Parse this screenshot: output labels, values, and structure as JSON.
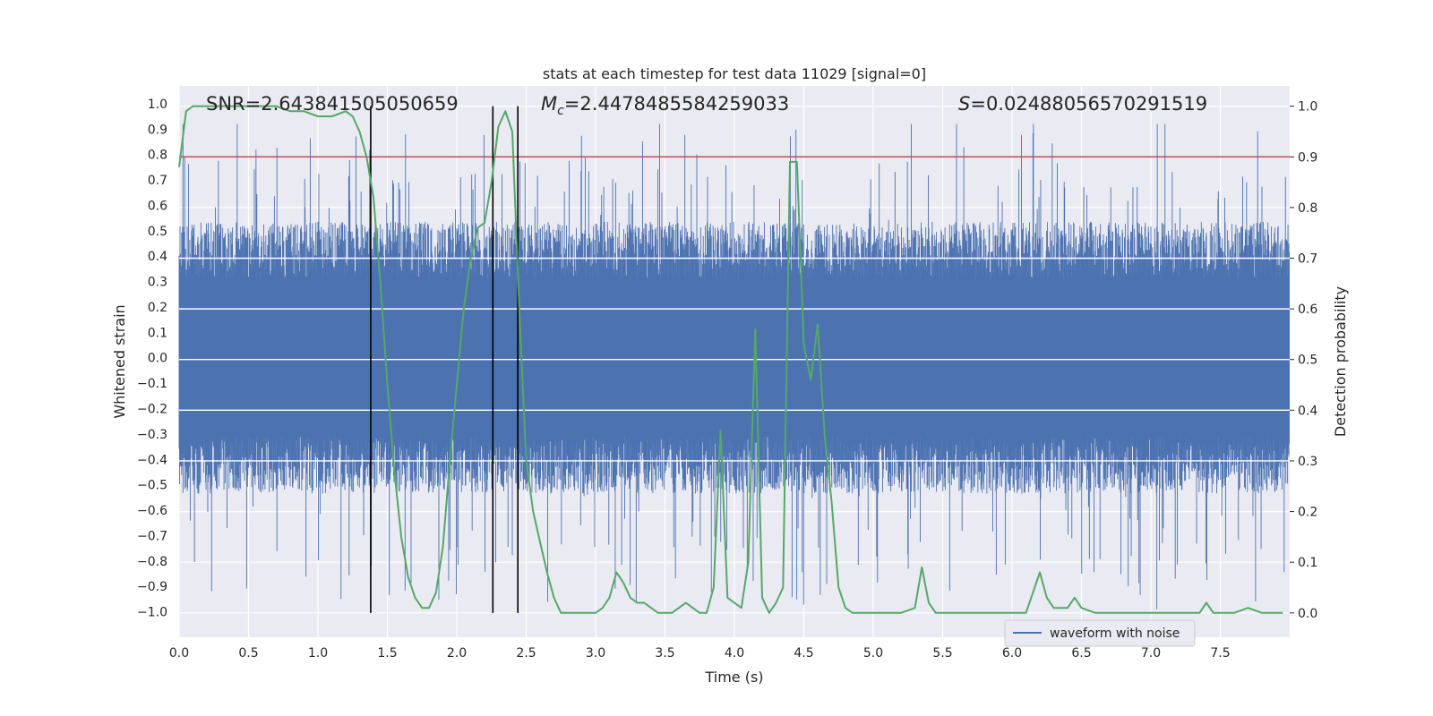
{
  "chart_data": {
    "type": "line",
    "title": "stats at each timestep for test data 11029 [signal=0]",
    "xlabel": "Time (s)",
    "ylabel": "Whitened strain",
    "y2label": "Detection probability",
    "xlim": [
      0.0,
      8.0
    ],
    "ylim": [
      -1.1,
      1.07
    ],
    "y2lim": [
      -0.048,
      1.04
    ],
    "xticks": [
      "0.0",
      "0.5",
      "1.0",
      "1.5",
      "2.0",
      "2.5",
      "3.0",
      "3.5",
      "4.0",
      "4.5",
      "5.0",
      "5.5",
      "6.0",
      "6.5",
      "7.0",
      "7.5"
    ],
    "yticks": [
      "−1.0",
      "−0.9",
      "−0.8",
      "−0.7",
      "−0.6",
      "−0.5",
      "−0.4",
      "−0.3",
      "−0.2",
      "−0.1",
      "0.0",
      "0.1",
      "0.2",
      "0.3",
      "0.4",
      "0.5",
      "0.6",
      "0.7",
      "0.8",
      "0.9",
      "1.0"
    ],
    "y2ticks": [
      "0.0",
      "0.1",
      "0.2",
      "0.3",
      "0.4",
      "0.5",
      "0.6",
      "0.7",
      "0.8",
      "0.9",
      "1.0"
    ],
    "grid": true,
    "legend": {
      "position": "lower-right",
      "entries": [
        "waveform with noise"
      ]
    },
    "annotations": {
      "snr_prefix": "SNR=",
      "snr_value": "2.643841505050659",
      "mc_symbol": "M",
      "mc_subscript": "c",
      "mc_value": "=2.4478485584259033",
      "s_symbol": "S",
      "s_value": "=0.02488056570291519"
    },
    "threshold": {
      "y2": 0.9,
      "color": "#c44e52"
    },
    "vlines_x": [
      1.38,
      2.26,
      2.44
    ],
    "series": [
      {
        "name": "waveform with noise",
        "axis": "y",
        "color": "#4c72b0",
        "kind": "noise",
        "envelope_typical": 0.5,
        "envelope_max": 1.0,
        "envelope_min": -1.0
      },
      {
        "name": "detection probability",
        "axis": "y2",
        "color": "#55a868",
        "x": [
          0.0,
          0.05,
          0.1,
          0.15,
          0.2,
          0.3,
          0.4,
          0.5,
          0.6,
          0.7,
          0.8,
          0.9,
          1.0,
          1.1,
          1.2,
          1.25,
          1.3,
          1.35,
          1.4,
          1.45,
          1.5,
          1.55,
          1.6,
          1.65,
          1.7,
          1.75,
          1.8,
          1.85,
          1.9,
          1.95,
          2.0,
          2.05,
          2.1,
          2.15,
          2.2,
          2.25,
          2.3,
          2.35,
          2.4,
          2.45,
          2.5,
          2.55,
          2.6,
          2.65,
          2.7,
          2.75,
          2.8,
          2.85,
          2.9,
          2.95,
          3.0,
          3.05,
          3.1,
          3.15,
          3.2,
          3.25,
          3.3,
          3.35,
          3.4,
          3.45,
          3.5,
          3.55,
          3.6,
          3.65,
          3.7,
          3.75,
          3.8,
          3.85,
          3.9,
          3.95,
          4.0,
          4.05,
          4.1,
          4.15,
          4.2,
          4.25,
          4.3,
          4.35,
          4.4,
          4.45,
          4.5,
          4.55,
          4.6,
          4.65,
          4.7,
          4.75,
          4.8,
          4.85,
          4.9,
          4.95,
          5.0,
          5.1,
          5.2,
          5.3,
          5.35,
          5.4,
          5.45,
          5.5,
          5.6,
          5.7,
          5.8,
          5.9,
          6.0,
          6.1,
          6.15,
          6.2,
          6.25,
          6.3,
          6.4,
          6.45,
          6.5,
          6.6,
          6.7,
          6.8,
          6.9,
          7.0,
          7.1,
          7.2,
          7.3,
          7.35,
          7.4,
          7.45,
          7.5,
          7.6,
          7.7,
          7.8,
          7.9,
          7.95
        ],
        "y": [
          0.88,
          0.99,
          1.0,
          1.0,
          1.0,
          1.0,
          1.0,
          1.0,
          1.0,
          1.0,
          0.99,
          0.99,
          0.98,
          0.98,
          0.99,
          0.98,
          0.95,
          0.9,
          0.82,
          0.65,
          0.45,
          0.28,
          0.15,
          0.07,
          0.03,
          0.01,
          0.01,
          0.04,
          0.13,
          0.3,
          0.45,
          0.6,
          0.7,
          0.76,
          0.77,
          0.85,
          0.96,
          0.99,
          0.95,
          0.6,
          0.3,
          0.2,
          0.14,
          0.08,
          0.03,
          0.0,
          0.0,
          0.0,
          0.0,
          0.0,
          0.0,
          0.01,
          0.03,
          0.08,
          0.06,
          0.03,
          0.02,
          0.02,
          0.01,
          0.0,
          0.0,
          0.0,
          0.01,
          0.02,
          0.01,
          0.0,
          0.0,
          0.05,
          0.36,
          0.03,
          0.02,
          0.01,
          0.1,
          0.56,
          0.03,
          0.0,
          0.02,
          0.05,
          0.89,
          0.89,
          0.53,
          0.46,
          0.57,
          0.35,
          0.22,
          0.05,
          0.01,
          0.0,
          0.0,
          0.0,
          0.0,
          0.0,
          0.0,
          0.01,
          0.09,
          0.02,
          0.0,
          0.0,
          0.0,
          0.0,
          0.0,
          0.0,
          0.0,
          0.0,
          0.04,
          0.08,
          0.03,
          0.01,
          0.01,
          0.03,
          0.01,
          0.0,
          0.0,
          0.0,
          0.0,
          0.0,
          0.0,
          0.0,
          0.0,
          0.0,
          0.02,
          0.0,
          0.0,
          0.0,
          0.01,
          0.0,
          0.0,
          0.0
        ]
      }
    ]
  }
}
